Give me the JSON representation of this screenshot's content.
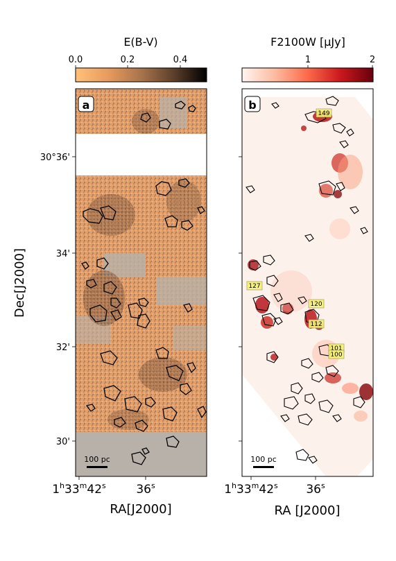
{
  "chart_data": [
    {
      "type": "heatmap",
      "panel_label": "a",
      "colorbar": {
        "title": "E(B-V)",
        "ticks": [
          "0.0",
          "0.2",
          "0.4"
        ],
        "tick_values": [
          0.0,
          0.2,
          0.4
        ],
        "range": [
          0.0,
          0.5
        ],
        "colormap": [
          "#ffc17a",
          "#e79a5e",
          "#a8744c",
          "#5c3f2a",
          "#000000"
        ]
      },
      "yaxis": {
        "label": "Dec[J2000]",
        "ticks": [
          "30°36'",
          "34'",
          "32'",
          "30'"
        ],
        "tick_values_arcmin": [
          36,
          34,
          32,
          30
        ]
      },
      "xaxis": {
        "label": "RA[J2000]",
        "ticks": [
          "1h33m42s",
          "36s"
        ],
        "tick_labels_display": [
          {
            "pre": "1",
            "h": "h",
            "mid": "33",
            "m": "m",
            "post": "42",
            "s": "s"
          },
          {
            "pre": "",
            "h": "",
            "mid": "",
            "m": "",
            "post": "36",
            "s": "s"
          }
        ]
      },
      "scalebar": "100 pc",
      "background_color": "#e6a06b",
      "masked_color": "#b7b1aa"
    },
    {
      "type": "heatmap",
      "panel_label": "b",
      "colorbar": {
        "title": "F2100W [μJy]",
        "ticks": [
          "1",
          "2"
        ],
        "tick_values": [
          1,
          2
        ],
        "range": [
          0,
          2
        ],
        "colormap": [
          "#fff5f0",
          "#fcbba1",
          "#fb6a4a",
          "#cb181d",
          "#67000d"
        ]
      },
      "xaxis": {
        "label": "RA [J2000]",
        "ticks": [
          "1h33m42s",
          "36s"
        ],
        "tick_labels_display": [
          {
            "pre": "1",
            "h": "h",
            "mid": "33",
            "m": "m",
            "post": "42",
            "s": "s"
          },
          {
            "pre": "",
            "h": "",
            "mid": "",
            "m": "",
            "post": "36",
            "s": "s"
          }
        ]
      },
      "scalebar": "100 pc",
      "region_labels": [
        "149",
        "127",
        "120",
        "112",
        "101",
        "100"
      ]
    }
  ]
}
